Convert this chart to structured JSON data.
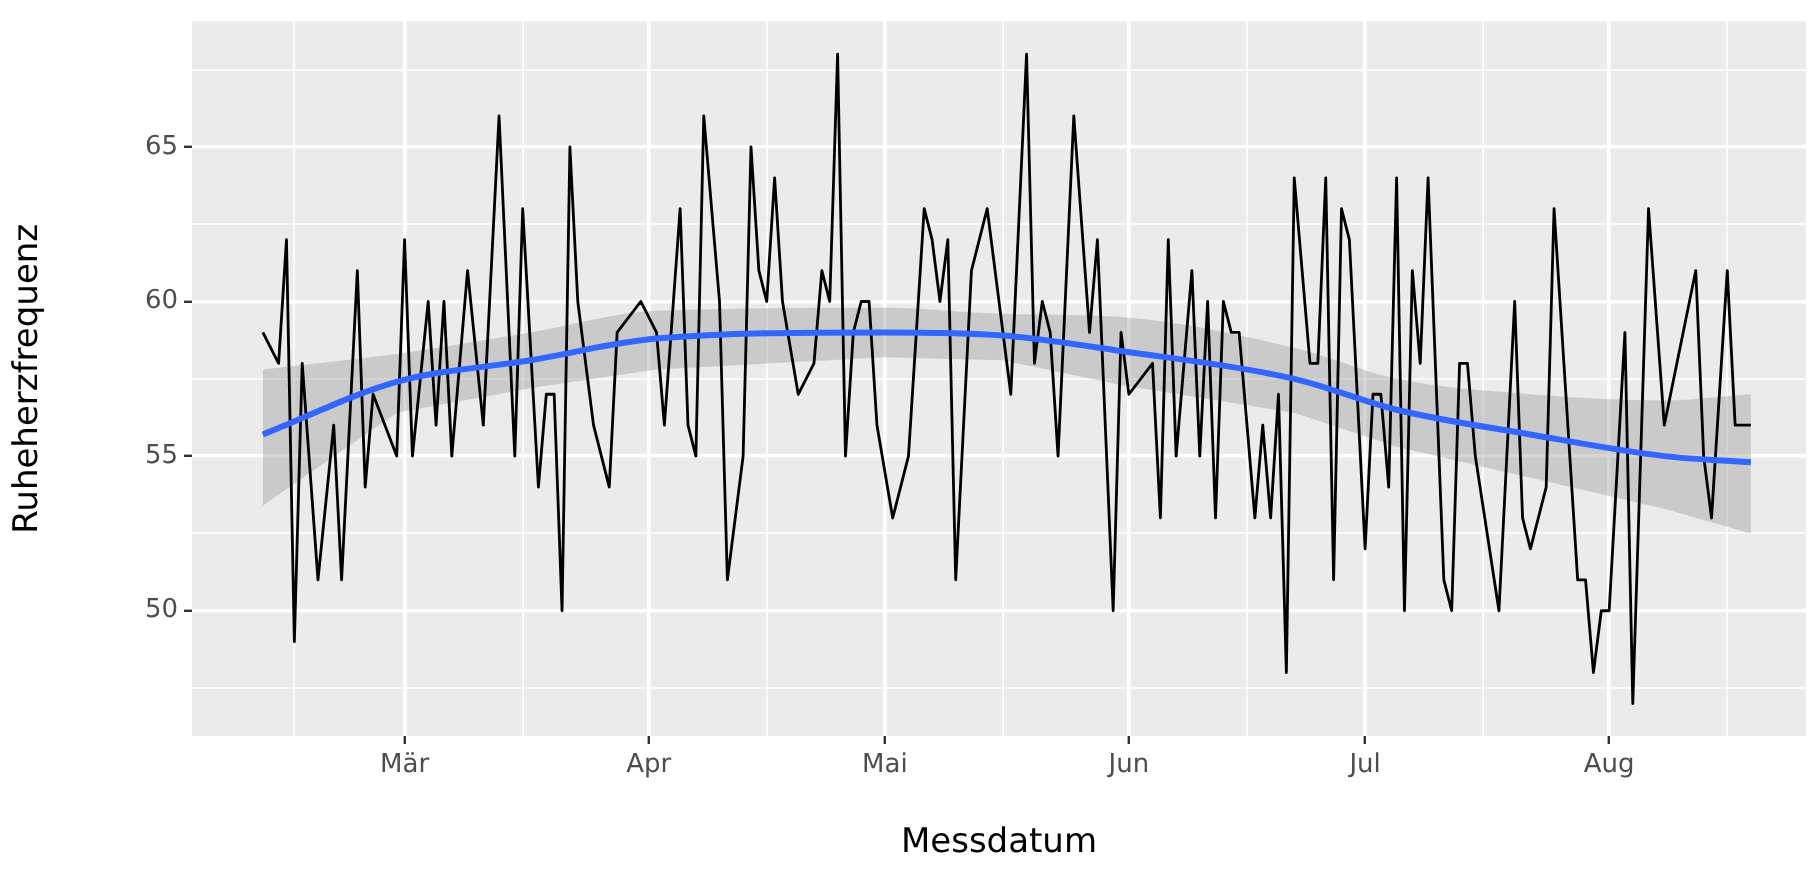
{
  "chart_data": {
    "type": "line",
    "xlabel": "Messdatum",
    "ylabel": "Ruheherzfrequenz",
    "grid": true,
    "marker": "none",
    "xlim": [
      "--02-02",
      "--08-26"
    ],
    "xticks": [
      {
        "value": "--02-15",
        "label": null
      },
      {
        "value": "--03-01",
        "label": "Mär"
      },
      {
        "value": "--03-16",
        "label": null
      },
      {
        "value": "--04-01",
        "label": "Apr"
      },
      {
        "value": "--04-16",
        "label": null
      },
      {
        "value": "--05-01",
        "label": "Mai"
      },
      {
        "value": "--05-16",
        "label": null
      },
      {
        "value": "--06-01",
        "label": "Jun"
      },
      {
        "value": "--06-16",
        "label": null
      },
      {
        "value": "--07-01",
        "label": "Jul"
      },
      {
        "value": "--07-16",
        "label": null
      },
      {
        "value": "--08-01",
        "label": "Aug"
      },
      {
        "value": "--08-16",
        "label": null
      }
    ],
    "ylim": [
      45.95,
      69.05
    ],
    "yticks": [
      {
        "value": 47.5,
        "label": null
      },
      50,
      {
        "value": 52.5,
        "label": null
      },
      55,
      {
        "value": 57.5,
        "label": null
      },
      60,
      {
        "value": 62.5,
        "label": null
      },
      65,
      {
        "value": 67.5,
        "label": null
      }
    ],
    "series": [
      {
        "type": "line",
        "color": "#000000",
        "x": [
          "--02-11",
          "--02-13",
          "--02-14",
          "--02-15",
          "--02-16",
          "--02-18",
          "--02-20",
          "--02-21",
          "--02-23",
          "--02-24",
          "--02-25",
          "--02-28",
          "--03-01",
          "--03-02",
          "--03-04",
          "--03-05",
          "--03-06",
          "--03-07",
          "--03-09",
          "--03-11",
          "--03-13",
          "--03-15",
          "--03-16",
          "--03-18",
          "--03-19",
          "--03-20",
          "--03-21",
          "--03-22",
          "--03-23",
          "--03-25",
          "--03-27",
          "--03-28",
          "--03-31",
          "--04-02",
          "--04-03",
          "--04-05",
          "--04-06",
          "--04-07",
          "--04-08",
          "--04-10",
          "--04-11",
          "--04-13",
          "--04-14",
          "--04-15",
          "--04-16",
          "--04-17",
          "--04-18",
          "--04-20",
          "--04-22",
          "--04-23",
          "--04-24",
          "--04-25",
          "--04-26",
          "--04-27",
          "--04-28",
          "--04-29",
          "--04-30",
          "--05-02",
          "--05-04",
          "--05-06",
          "--05-07",
          "--05-08",
          "--05-09",
          "--05-10",
          "--05-12",
          "--05-14",
          "--05-17",
          "--05-19",
          "--05-20",
          "--05-21",
          "--05-22",
          "--05-23",
          "--05-25",
          "--05-27",
          "--05-28",
          "--05-30",
          "--05-31",
          "--06-01",
          "--06-04",
          "--06-05",
          "--06-06",
          "--06-07",
          "--06-09",
          "--06-10",
          "--06-11",
          "--06-12",
          "--06-13",
          "--06-14",
          "--06-15",
          "--06-17",
          "--06-18",
          "--06-19",
          "--06-20",
          "--06-21",
          "--06-22",
          "--06-24",
          "--06-25",
          "--06-26",
          "--06-27",
          "--06-28",
          "--06-29",
          "--07-01",
          "--07-02",
          "--07-03",
          "--07-04",
          "--07-05",
          "--07-06",
          "--07-07",
          "--07-08",
          "--07-09",
          "--07-11",
          "--07-12",
          "--07-13",
          "--07-14",
          "--07-15",
          "--07-18",
          "--07-20",
          "--07-21",
          "--07-22",
          "--07-24",
          "--07-25",
          "--07-28",
          "--07-29",
          "--07-30",
          "--07-31",
          "--08-01",
          "--08-03",
          "--08-04",
          "--08-06",
          "--08-08",
          "--08-12",
          "--08-13",
          "--08-14",
          "--08-16",
          "--08-17",
          "--08-19"
        ],
        "values": [
          59,
          58,
          62,
          49,
          58,
          51,
          56,
          51,
          61,
          54,
          57,
          55,
          62,
          55,
          60,
          56,
          60,
          55,
          61,
          56,
          66,
          55,
          63,
          54,
          57,
          57,
          50,
          65,
          60,
          56,
          54,
          59,
          60,
          59,
          56,
          63,
          56,
          55,
          66,
          60,
          51,
          55,
          65,
          61,
          60,
          64,
          60,
          57,
          58,
          61,
          60,
          68,
          55,
          59,
          60,
          60,
          56,
          53,
          55,
          63,
          62,
          60,
          62,
          51,
          61,
          63,
          57,
          68,
          58,
          60,
          59,
          55,
          66,
          59,
          62,
          50,
          59,
          57,
          58,
          53,
          62,
          55,
          61,
          55,
          60,
          53,
          60,
          59,
          59,
          53,
          56,
          53,
          57,
          48,
          64,
          58,
          58,
          64,
          51,
          63,
          62,
          52,
          57,
          57,
          54,
          64,
          50,
          61,
          58,
          64,
          51,
          50,
          58,
          58,
          55,
          50,
          60,
          53,
          52,
          54,
          63,
          51,
          51,
          48,
          50,
          50,
          59,
          47,
          63,
          56,
          61,
          55,
          53,
          61,
          56,
          56
        ]
      },
      {
        "type": "line",
        "color": "#3366ff",
        "x": [
          "--02-11",
          "--02-28",
          "--03-17",
          "--04-02",
          "--05-01",
          "--05-16",
          "--05-31",
          "--06-22",
          "--07-05",
          "--07-22",
          "--08-08",
          "--08-19"
        ],
        "values": [
          55.7,
          57.4,
          58.1,
          58.8,
          59.0,
          58.9,
          58.4,
          57.5,
          56.5,
          55.7,
          55.0,
          54.8
        ],
        "lower": [
          53.4,
          56.4,
          57.2,
          57.8,
          58.2,
          58.1,
          57.3,
          56.4,
          55.3,
          54.3,
          53.3,
          52.5
        ],
        "upper": [
          57.8,
          58.3,
          59.0,
          59.7,
          59.8,
          59.6,
          59.5,
          58.5,
          57.5,
          57.0,
          56.8,
          57.0
        ]
      }
    ]
  }
}
